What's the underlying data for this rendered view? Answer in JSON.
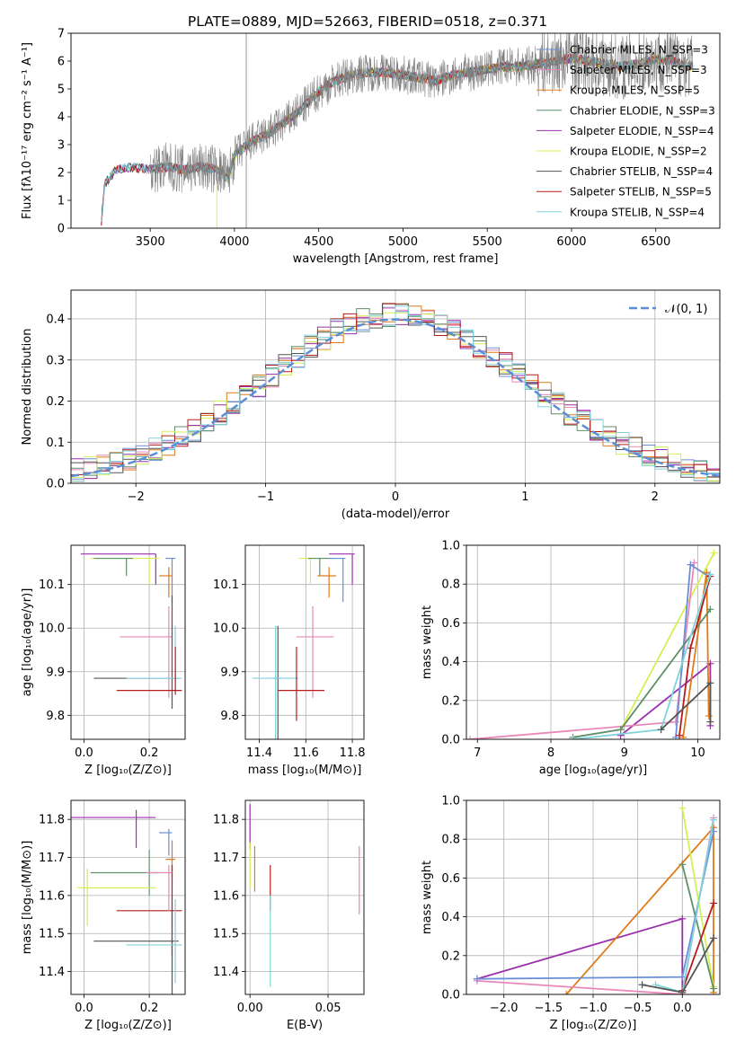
{
  "colors": {
    "chabrier_miles": "#6a8fd8",
    "salpeter_miles": "#e887b8",
    "kroupa_miles": "#e07b1a",
    "chabrier_elodie": "#5f8f6a",
    "salpeter_elodie": "#9b2fae",
    "kroupa_elodie": "#d6ef52",
    "chabrier_stelib": "#555555",
    "salpeter_stelib": "#b71c1c",
    "kroupa_stelib": "#7fd3dc",
    "data": "#808080",
    "normal": "#5b8ed6",
    "grid": "#b0b0b0"
  },
  "chart_data": [
    {
      "type": "line",
      "id": "spectrum",
      "title": "PLATE=0889, MJD=52663, FIBERID=0518, z=0.371",
      "xlabel": "wavelength [Angstrom, rest frame]",
      "ylabel": "Flux [fλ10⁻¹⁷ erg cm⁻² s⁻¹ A⁻¹]",
      "xlim": [
        3030,
        6880
      ],
      "ylim": [
        0,
        7
      ],
      "xticks": [
        "3500",
        "4000",
        "4500",
        "5000",
        "5500",
        "6000",
        "6500"
      ],
      "xtick_values": [
        3500,
        4000,
        4500,
        5000,
        5500,
        6000,
        6500
      ],
      "yticks": [
        "0",
        "1",
        "2",
        "3",
        "4",
        "5",
        "6",
        "7"
      ],
      "ytick_values": [
        0,
        1,
        2,
        3,
        4,
        5,
        6,
        7
      ],
      "grid": false,
      "legend_position": "top-right",
      "continuum": {
        "x": [
          3210,
          3230,
          3300,
          3400,
          3500,
          3600,
          3700,
          3800,
          3900,
          3960,
          4000,
          4100,
          4200,
          4300,
          4400,
          4500,
          4600,
          4700,
          4800,
          4900,
          5000,
          5100,
          5200,
          5300,
          5400,
          5500,
          5600,
          5700,
          5800,
          5900,
          6000,
          6100,
          6200,
          6300,
          6400,
          6500,
          6600,
          6720
        ],
        "y": [
          0.2,
          1.6,
          2.1,
          2.2,
          2.1,
          2.2,
          2.1,
          2.2,
          2.1,
          1.8,
          2.6,
          3.1,
          3.4,
          3.8,
          4.3,
          4.9,
          5.3,
          5.5,
          5.6,
          5.6,
          5.5,
          5.4,
          5.3,
          5.5,
          5.6,
          5.7,
          5.8,
          5.8,
          5.9,
          6.0,
          6.1,
          6.0,
          5.9,
          5.8,
          5.9,
          6.1,
          6.0,
          5.8
        ]
      },
      "data_range": [
        3500,
        6720
      ],
      "legend": [
        "Chabrier MILES, N_SSP=3",
        "Salpeter MILES, N_SSP=3",
        "Kroupa MILES, N_SSP=5",
        "Chabrier ELODIE, N_SSP=3",
        "Salpeter ELODIE, N_SSP=4",
        "Kroupa ELODIE, N_SSP=2",
        "Chabrier STELIB, N_SSP=4",
        "Salpeter STELIB, N_SSP=5",
        "Kroupa STELIB, N_SSP=4"
      ],
      "legend_colors": [
        "chabrier_miles",
        "salpeter_miles",
        "kroupa_miles",
        "chabrier_elodie",
        "salpeter_elodie",
        "kroupa_elodie",
        "chabrier_stelib",
        "salpeter_stelib",
        "kroupa_stelib"
      ]
    },
    {
      "type": "step",
      "id": "residuals",
      "xlabel": "(data-model)/error",
      "ylabel": "Normed distribution",
      "xlim": [
        -2.5,
        2.5
      ],
      "ylim": [
        0,
        0.47
      ],
      "xticks": [
        "−2",
        "−1",
        "0",
        "1",
        "2"
      ],
      "xtick_values": [
        -2,
        -1,
        0,
        1,
        2
      ],
      "yticks": [
        "0.0",
        "0.1",
        "0.2",
        "0.3",
        "0.4"
      ],
      "ytick_values": [
        0,
        0.1,
        0.2,
        0.3,
        0.4
      ],
      "grid": true,
      "legend": [
        "𝒩(0, 1)"
      ],
      "legend_position": "top-right",
      "bin_width": 0.1,
      "bin_start": -2.5
    },
    {
      "type": "errorbar",
      "id": "age_vs_Z",
      "xlabel": "Z [log₁₀(Z/Z⊙)]",
      "ylabel": "age  [log₁₀(age/yr)]",
      "xlim": [
        -0.04,
        0.31
      ],
      "ylim": [
        9.745,
        10.19
      ],
      "xticks": [
        "0.0",
        "0.2"
      ],
      "xtick_values": [
        0,
        0.2
      ],
      "yticks": [
        "9.8",
        "9.9",
        "10.0",
        "10.1"
      ],
      "ytick_values": [
        9.8,
        9.9,
        10.0,
        10.1
      ],
      "grid": true,
      "points": [
        {
          "x": 0.22,
          "y": 10.17,
          "xerr": [
            0.23,
            0
          ],
          "yerr": [
            0.07,
            0
          ],
          "color": "salpeter_elodie"
        },
        {
          "x": 0.2,
          "y": 10.16,
          "xerr": [
            0.18,
            0.03
          ],
          "yerr": [
            0.06,
            0
          ],
          "color": "kroupa_elodie"
        },
        {
          "x": 0.13,
          "y": 10.16,
          "xerr": [
            0.1,
            0.02
          ],
          "yerr": [
            0.04,
            0
          ],
          "color": "chabrier_elodie"
        },
        {
          "x": 0.27,
          "y": 10.16,
          "xerr": [
            0.02,
            0.01
          ],
          "yerr": [
            0.1,
            0
          ],
          "color": "chabrier_miles"
        },
        {
          "x": 0.26,
          "y": 10.12,
          "xerr": [
            0.03,
            0.01
          ],
          "yerr": [
            0.05,
            0.02
          ],
          "color": "kroupa_miles"
        },
        {
          "x": 0.26,
          "y": 9.98,
          "xerr": [
            0.15,
            0.01
          ],
          "yerr": [
            0.14,
            0.07
          ],
          "color": "salpeter_miles"
        },
        {
          "x": 0.27,
          "y": 9.885,
          "xerr": [
            0.24,
            0.02
          ],
          "yerr": [
            0.07,
            0.19
          ],
          "color": "chabrier_stelib"
        },
        {
          "x": 0.28,
          "y": 9.885,
          "xerr": [
            0.15,
            0.02
          ],
          "yerr": [
            0.02,
            0.12
          ],
          "color": "kroupa_stelib"
        },
        {
          "x": 0.28,
          "y": 9.857,
          "xerr": [
            0.18,
            0.02
          ],
          "yerr": [
            0.01,
            0.1
          ],
          "color": "salpeter_stelib"
        }
      ]
    },
    {
      "type": "errorbar",
      "id": "age_vs_mass",
      "xlabel": "mass [log₁₀(M/M⊙)]",
      "ylabel": "",
      "xlim": [
        11.34,
        11.85
      ],
      "ylim": [
        9.745,
        10.19
      ],
      "xticks": [
        "11.4",
        "11.6",
        "11.8"
      ],
      "xtick_values": [
        11.4,
        11.6,
        11.8
      ],
      "yticks": [
        "9.8",
        "9.9",
        "10.0",
        "10.1"
      ],
      "ytick_values": [
        9.8,
        9.9,
        10.0,
        10.1
      ],
      "grid": true,
      "points": [
        {
          "x": 11.8,
          "y": 10.17,
          "xerr": [
            0.1,
            0.01
          ],
          "yerr": [
            0.07,
            0
          ],
          "color": "salpeter_elodie"
        },
        {
          "x": 11.62,
          "y": 10.16,
          "xerr": [
            0.05,
            0.1
          ],
          "yerr": [
            0.06,
            0
          ],
          "color": "kroupa_elodie"
        },
        {
          "x": 11.66,
          "y": 10.16,
          "xerr": [
            0.05,
            0.06
          ],
          "yerr": [
            0.04,
            0
          ],
          "color": "chabrier_elodie"
        },
        {
          "x": 11.76,
          "y": 10.16,
          "xerr": [
            0.06,
            0.01
          ],
          "yerr": [
            0.1,
            0
          ],
          "color": "chabrier_miles"
        },
        {
          "x": 11.7,
          "y": 10.12,
          "xerr": [
            0.05,
            0.03
          ],
          "yerr": [
            0.05,
            0.02
          ],
          "color": "kroupa_miles"
        },
        {
          "x": 11.63,
          "y": 9.98,
          "xerr": [
            0.07,
            0.09
          ],
          "yerr": [
            0.14,
            0.07
          ],
          "color": "salpeter_miles"
        },
        {
          "x": 11.48,
          "y": 9.885,
          "xerr": [
            0.02,
            0.01
          ],
          "yerr": [
            0.19,
            0.12
          ],
          "color": "chabrier_stelib"
        },
        {
          "x": 11.47,
          "y": 9.885,
          "xerr": [
            0.1,
            0.1
          ],
          "yerr": [
            0.16,
            0.12
          ],
          "color": "kroupa_stelib"
        },
        {
          "x": 11.56,
          "y": 9.857,
          "xerr": [
            0.08,
            0.12
          ],
          "yerr": [
            0.07,
            0.1
          ],
          "color": "salpeter_stelib"
        }
      ]
    },
    {
      "type": "line",
      "id": "mass_weight_vs_age",
      "xlabel": "age  [log₁₀(age/yr)]",
      "ylabel": "mass weight",
      "xlim": [
        6.85,
        10.3
      ],
      "ylim": [
        0,
        1
      ],
      "xticks": [
        "7",
        "8",
        "9",
        "10"
      ],
      "xtick_values": [
        7,
        8,
        9,
        10
      ],
      "yticks": [
        "0.0",
        "0.2",
        "0.4",
        "0.6",
        "0.8",
        "1.0"
      ],
      "ytick_values": [
        0,
        0.2,
        0.4,
        0.6,
        0.8,
        1.0
      ],
      "grid": true,
      "series": [
        {
          "color": "kroupa_elodie",
          "x": [
            8.95,
            10.22
          ],
          "y": [
            0.05,
            0.96
          ]
        },
        {
          "color": "salpeter_elodie",
          "x": [
            8.95,
            10.17,
            10.17
          ],
          "y": [
            0.02,
            0.39,
            0.07
          ]
        },
        {
          "color": "salpeter_miles",
          "x": [
            6.9,
            9.7,
            9.95
          ],
          "y": [
            0.0,
            0.09,
            0.91
          ]
        },
        {
          "color": "chabrier_miles",
          "x": [
            9.7,
            9.9,
            10.15
          ],
          "y": [
            0.01,
            0.9,
            0.84
          ]
        },
        {
          "color": "kroupa_miles",
          "x": [
            9.8,
            10.12,
            10.15
          ],
          "y": [
            0.01,
            0.86,
            0.12
          ]
        },
        {
          "color": "chabrier_elodie",
          "x": [
            8.3,
            8.95,
            10.17
          ],
          "y": [
            0.01,
            0.05,
            0.67
          ]
        },
        {
          "color": "salpeter_stelib",
          "x": [
            9.75,
            9.9,
            10.17
          ],
          "y": [
            0.02,
            0.47,
            0.84
          ]
        },
        {
          "color": "kroupa_stelib",
          "x": [
            8.3,
            9.5,
            10.17
          ],
          "y": [
            0.0,
            0.05,
            0.85
          ]
        },
        {
          "color": "chabrier_stelib",
          "x": [
            9.5,
            10.17,
            10.17
          ],
          "y": [
            0.05,
            0.29,
            0.09
          ]
        }
      ]
    },
    {
      "type": "errorbar",
      "id": "mass_vs_Z",
      "xlabel": "Z [log₁₀(Z/Z⊙)]",
      "ylabel": "mass [log₁₀(M/M⊙)]",
      "xlim": [
        -0.04,
        0.31
      ],
      "ylim": [
        11.34,
        11.85
      ],
      "xticks": [
        "0.0",
        "0.2"
      ],
      "xtick_values": [
        0,
        0.2
      ],
      "yticks": [
        "11.4",
        "11.5",
        "11.6",
        "11.7",
        "11.8"
      ],
      "ytick_values": [
        11.4,
        11.5,
        11.6,
        11.7,
        11.8
      ],
      "grid": true,
      "points": [
        {
          "x": 0.16,
          "y": 11.805,
          "xerr": [
            0.2,
            0.06
          ],
          "yerr": [
            0.08,
            0.02
          ],
          "color": "salpeter_elodie"
        },
        {
          "x": 0.26,
          "y": 11.765,
          "xerr": [
            0.03,
            0.01
          ],
          "yerr": [
            0.06,
            0.01
          ],
          "color": "chabrier_miles"
        },
        {
          "x": 0.27,
          "y": 11.695,
          "xerr": [
            0.02,
            0.01
          ],
          "yerr": [
            0.05,
            0.05
          ],
          "color": "kroupa_miles"
        },
        {
          "x": 0.2,
          "y": 11.66,
          "xerr": [
            0.18,
            0.03
          ],
          "yerr": [
            0.06,
            0.06
          ],
          "color": "chabrier_elodie"
        },
        {
          "x": 0.01,
          "y": 11.62,
          "xerr": [
            0.03,
            0.21
          ],
          "yerr": [
            0.1,
            0.05
          ],
          "color": "kroupa_elodie"
        },
        {
          "x": 0.27,
          "y": 11.56,
          "xerr": [
            0.17,
            0.03
          ],
          "yerr": [
            0.12,
            0.12
          ],
          "color": "salpeter_stelib"
        },
        {
          "x": 0.27,
          "y": 11.48,
          "xerr": [
            0.24,
            0.02
          ],
          "yerr": [
            0.14,
            0.1
          ],
          "color": "chabrier_stelib"
        },
        {
          "x": 0.28,
          "y": 11.47,
          "xerr": [
            0.15,
            0.02
          ],
          "yerr": [
            0.1,
            0.12
          ],
          "color": "kroupa_stelib"
        },
        {
          "x": 0.26,
          "y": 11.66,
          "xerr": [
            0.07,
            0.01
          ],
          "yerr": [
            0.1,
            0.02
          ],
          "color": "salpeter_miles"
        }
      ]
    },
    {
      "type": "errorbar",
      "id": "mass_vs_ebv",
      "xlabel": "E(B-V)",
      "ylabel": "",
      "xlim": [
        -0.003,
        0.073
      ],
      "ylim": [
        11.34,
        11.85
      ],
      "xticks": [
        "0.00",
        "0.05"
      ],
      "xtick_values": [
        0,
        0.05
      ],
      "yticks": [
        "11.4",
        "11.5",
        "11.6",
        "11.7",
        "11.8"
      ],
      "ytick_values": [
        11.4,
        11.5,
        11.6,
        11.7,
        11.8
      ],
      "grid": true,
      "points": [
        {
          "x": 0.0,
          "y": 11.78,
          "xerr": [
            0,
            0
          ],
          "yerr": [
            0.06,
            0.06
          ],
          "color": "salpeter_elodie"
        },
        {
          "x": 0.0,
          "y": 11.68,
          "xerr": [
            0,
            0
          ],
          "yerr": [
            0.06,
            0.06
          ],
          "color": "kroupa_elodie"
        },
        {
          "x": 0.003,
          "y": 11.67,
          "xerr": [
            0,
            0
          ],
          "yerr": [
            0.06,
            0.06
          ],
          "color": "kroupa_miles"
        },
        {
          "x": 0.013,
          "y": 11.62,
          "xerr": [
            0,
            0
          ],
          "yerr": [
            0.06,
            0.06
          ],
          "color": "salpeter_stelib"
        },
        {
          "x": 0.013,
          "y": 11.48,
          "xerr": [
            0,
            0
          ],
          "yerr": [
            0.12,
            0.12
          ],
          "color": "kroupa_stelib"
        },
        {
          "x": 0.07,
          "y": 11.64,
          "xerr": [
            0,
            0
          ],
          "yerr": [
            0.09,
            0.09
          ],
          "color": "salpeter_miles"
        }
      ]
    },
    {
      "type": "line",
      "id": "mass_weight_vs_Z",
      "xlabel": "Z [log₁₀(Z/Z⊙)]",
      "ylabel": "mass weight",
      "xlim": [
        -2.42,
        0.42
      ],
      "ylim": [
        0,
        1
      ],
      "xticks": [
        "−2.0",
        "−1.5",
        "−1.0",
        "−0.5",
        "0.0"
      ],
      "xtick_values": [
        -2,
        -1.5,
        -1,
        -0.5,
        0
      ],
      "yticks": [
        "0.0",
        "0.2",
        "0.4",
        "0.6",
        "0.8",
        "1.0"
      ],
      "ytick_values": [
        0,
        0.2,
        0.4,
        0.6,
        0.8,
        1.0
      ],
      "grid": true,
      "series": [
        {
          "color": "salpeter_elodie",
          "x": [
            -2.3,
            0.0,
            0.0
          ],
          "y": [
            0.08,
            0.39,
            0.02
          ]
        },
        {
          "color": "kroupa_miles",
          "x": [
            -1.3,
            0.35,
            0.35
          ],
          "y": [
            0.0,
            0.86,
            0.01
          ]
        },
        {
          "color": "salpeter_miles",
          "x": [
            -2.3,
            0.0,
            0.35
          ],
          "y": [
            0.07,
            0.0,
            0.91
          ]
        },
        {
          "color": "chabrier_miles",
          "x": [
            -2.3,
            0.0,
            0.35
          ],
          "y": [
            0.08,
            0.09,
            0.84
          ]
        },
        {
          "color": "kroupa_elodie",
          "x": [
            0.0,
            0.35
          ],
          "y": [
            0.96,
            0.04
          ]
        },
        {
          "color": "chabrier_elodie",
          "x": [
            0.0,
            0.35
          ],
          "y": [
            0.67,
            0.03
          ]
        },
        {
          "color": "salpeter_stelib",
          "x": [
            0.0,
            0.35
          ],
          "y": [
            0.02,
            0.47
          ]
        },
        {
          "color": "kroupa_stelib",
          "x": [
            -0.3,
            0.0,
            0.35
          ],
          "y": [
            0.05,
            0.01,
            0.9
          ]
        },
        {
          "color": "chabrier_stelib",
          "x": [
            -0.45,
            0.0,
            0.35
          ],
          "y": [
            0.05,
            0.01,
            0.29
          ]
        }
      ]
    }
  ]
}
